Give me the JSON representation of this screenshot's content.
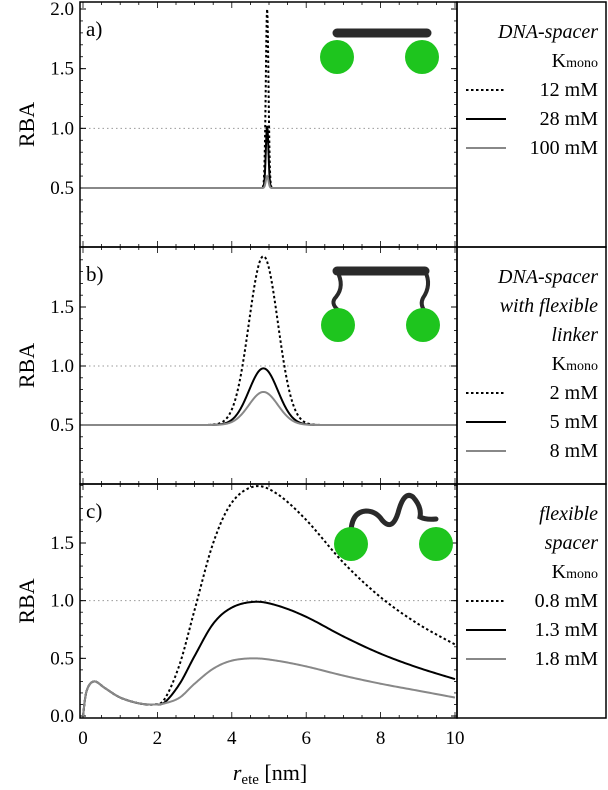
{
  "chart_data": [
    {
      "panel": "a)",
      "type": "line",
      "ylabel": "RBA",
      "ylim": [
        0.0,
        2.0
      ],
      "yticks": [
        "0.5",
        "1.0",
        "1.5",
        "2.0"
      ],
      "ytick_values": [
        0.5,
        1.0,
        1.5,
        2.0
      ],
      "reference_line": 1.0,
      "legend_title": [
        "DNA-spacer"
      ],
      "legend_k": "K",
      "legend_k_sub": "mono",
      "series": [
        {
          "name": "12  mM",
          "style": "dotted",
          "color": "#000000",
          "shape": "peak",
          "base": 0.5,
          "peak": 2.0,
          "center": 4.95,
          "width": 0.05
        },
        {
          "name": "28  mM",
          "style": "solid",
          "color": "#000000",
          "shape": "peak",
          "base": 0.5,
          "peak": 1.02,
          "center": 4.95,
          "width": 0.05
        },
        {
          "name": "100  mM",
          "style": "solid",
          "color": "#888888",
          "shape": "peak",
          "base": 0.5,
          "peak": 0.6,
          "center": 4.95,
          "width": 0.05
        }
      ],
      "icon": "rigid-spacer-icon"
    },
    {
      "panel": "b)",
      "type": "line",
      "ylabel": "RBA",
      "ylim": [
        0.2,
        2.0
      ],
      "yticks": [
        "0.5",
        "1.0",
        "1.5"
      ],
      "ytick_values": [
        0.5,
        1.0,
        1.5
      ],
      "reference_line": 1.0,
      "legend_title": [
        "DNA-spacer",
        "with flexible",
        "linker"
      ],
      "legend_k": "K",
      "legend_k_sub": "mono",
      "series": [
        {
          "name": "2  mM",
          "style": "dotted",
          "color": "#000000",
          "shape": "peak",
          "base": 0.5,
          "peak": 1.93,
          "center": 4.85,
          "width": 0.55
        },
        {
          "name": "5  mM",
          "style": "solid",
          "color": "#000000",
          "shape": "peak",
          "base": 0.5,
          "peak": 0.98,
          "center": 4.85,
          "width": 0.55
        },
        {
          "name": "8  mM",
          "style": "solid",
          "color": "#888888",
          "shape": "peak",
          "base": 0.5,
          "peak": 0.78,
          "center": 4.85,
          "width": 0.55
        }
      ],
      "icon": "linker-spacer-icon"
    },
    {
      "panel": "c)",
      "type": "line",
      "ylabel": "RBA",
      "ylim": [
        0.0,
        2.0
      ],
      "yticks": [
        "0.0",
        "0.5",
        "1.0",
        "1.5"
      ],
      "ytick_values": [
        0.0,
        0.5,
        1.0,
        1.5
      ],
      "reference_line": 1.0,
      "xlim": [
        0,
        10
      ],
      "xticks": [
        "0",
        "2",
        "4",
        "6",
        "8",
        "10"
      ],
      "xtick_values": [
        0,
        2,
        4,
        6,
        8,
        10
      ],
      "xlabel": "r",
      "xlabel_sub": "ete",
      "xlabel_unit": " [nm]",
      "legend_title": [
        "flexible",
        "spacer"
      ],
      "legend_k": "K",
      "legend_k_sub": "mono",
      "series": [
        {
          "name": "0.8  mM",
          "style": "dotted",
          "color": "#000000",
          "shape": "broad",
          "x": [
            0,
            0.1,
            0.3,
            0.6,
            1.0,
            1.5,
            1.9,
            2.2,
            2.6,
            3.0,
            3.5,
            4.0,
            4.6,
            5.2,
            6.0,
            7.0,
            8.0,
            9.0,
            10.0
          ],
          "y": [
            0,
            0.22,
            0.3,
            0.24,
            0.16,
            0.11,
            0.1,
            0.15,
            0.45,
            0.92,
            1.5,
            1.85,
            1.99,
            1.93,
            1.7,
            1.33,
            1.03,
            0.8,
            0.62
          ]
        },
        {
          "name": "1.3  mM",
          "style": "solid",
          "color": "#000000",
          "shape": "broad",
          "x": [
            0,
            0.1,
            0.3,
            0.6,
            1.0,
            1.5,
            1.9,
            2.2,
            2.6,
            3.0,
            3.5,
            4.0,
            4.6,
            5.2,
            6.0,
            7.0,
            8.0,
            9.0,
            10.0
          ],
          "y": [
            0,
            0.22,
            0.3,
            0.24,
            0.16,
            0.11,
            0.1,
            0.12,
            0.28,
            0.52,
            0.8,
            0.94,
            0.99,
            0.96,
            0.86,
            0.69,
            0.54,
            0.42,
            0.32
          ]
        },
        {
          "name": "1.8  mM",
          "style": "solid",
          "color": "#888888",
          "shape": "broad",
          "x": [
            0,
            0.1,
            0.3,
            0.6,
            1.0,
            1.5,
            1.9,
            2.2,
            2.6,
            3.0,
            3.5,
            4.0,
            4.6,
            5.2,
            6.0,
            7.0,
            8.0,
            9.0,
            10.0
          ],
          "y": [
            0,
            0.22,
            0.3,
            0.24,
            0.16,
            0.11,
            0.1,
            0.11,
            0.16,
            0.28,
            0.41,
            0.48,
            0.5,
            0.48,
            0.43,
            0.35,
            0.28,
            0.22,
            0.16
          ]
        }
      ],
      "icon": "flexible-spacer-icon"
    }
  ],
  "colors": {
    "ball": "#1ec51e",
    "bar": "#2a2a2a",
    "gray_series": "#888888",
    "reference": "#999999"
  }
}
